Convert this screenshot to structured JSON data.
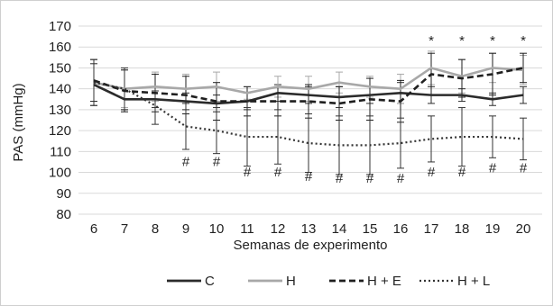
{
  "chart_data": {
    "type": "line",
    "title": "",
    "xlabel": "Semanas de experimento",
    "ylabel": "PAS (mmHg)",
    "x": [
      6,
      7,
      8,
      9,
      10,
      11,
      12,
      13,
      14,
      15,
      16,
      17,
      18,
      19,
      20
    ],
    "ylim": [
      80,
      170
    ],
    "yticks": [
      80,
      90,
      100,
      110,
      120,
      130,
      140,
      150,
      160,
      170
    ],
    "grid": "horizontal",
    "legend_position": "bottom",
    "series": [
      {
        "name": "C",
        "style": "solid",
        "color": "#2b2b2b",
        "values": [
          142,
          135,
          135,
          134,
          133,
          134,
          138,
          137,
          136,
          137,
          138,
          137,
          137,
          135,
          137
        ],
        "error": [
          10,
          5,
          4,
          4,
          4,
          4,
          4,
          4,
          5,
          4,
          5,
          4,
          3,
          3,
          4
        ]
      },
      {
        "name": "H",
        "style": "solid",
        "color": "#a8a8a8",
        "values": [
          143,
          140,
          141,
          140,
          141,
          138,
          141,
          140,
          143,
          141,
          140,
          150,
          146,
          150,
          149
        ],
        "error": [
          11,
          9,
          7,
          7,
          7,
          3,
          5,
          6,
          5,
          5,
          7,
          8,
          8,
          7,
          7
        ]
      },
      {
        "name": "H + E",
        "style": "dashed",
        "color": "#1f1f1f",
        "values": [
          144,
          139,
          138,
          137,
          134,
          134,
          134,
          134,
          133,
          135,
          134,
          147,
          145,
          147,
          150
        ],
        "error": [
          10,
          10,
          9,
          9,
          9,
          7,
          7,
          8,
          8,
          10,
          10,
          10,
          9,
          10,
          7
        ]
      },
      {
        "name": "H + L",
        "style": "dotted",
        "color": "#333333",
        "values": [
          143,
          140,
          132,
          122,
          120,
          117,
          117,
          114,
          113,
          113,
          114,
          116,
          117,
          117,
          116
        ],
        "error": [
          11,
          10,
          9,
          11,
          11,
          14,
          13,
          14,
          14,
          14,
          12,
          11,
          14,
          10,
          10
        ]
      }
    ],
    "annotations": [
      {
        "x": 9,
        "y": 103,
        "text": "#"
      },
      {
        "x": 10,
        "y": 103,
        "text": "#"
      },
      {
        "x": 11,
        "y": 98,
        "text": "#"
      },
      {
        "x": 12,
        "y": 98,
        "text": "#"
      },
      {
        "x": 13,
        "y": 96,
        "text": "#"
      },
      {
        "x": 14,
        "y": 95,
        "text": "#"
      },
      {
        "x": 15,
        "y": 95,
        "text": "#"
      },
      {
        "x": 16,
        "y": 95,
        "text": "#"
      },
      {
        "x": 17,
        "y": 98,
        "text": "#"
      },
      {
        "x": 18,
        "y": 98,
        "text": "#"
      },
      {
        "x": 19,
        "y": 100,
        "text": "#"
      },
      {
        "x": 20,
        "y": 100,
        "text": "#"
      },
      {
        "x": 17,
        "y": 161,
        "text": "*"
      },
      {
        "x": 18,
        "y": 161,
        "text": "*"
      },
      {
        "x": 19,
        "y": 161,
        "text": "*"
      },
      {
        "x": 20,
        "y": 161,
        "text": "*"
      }
    ]
  }
}
